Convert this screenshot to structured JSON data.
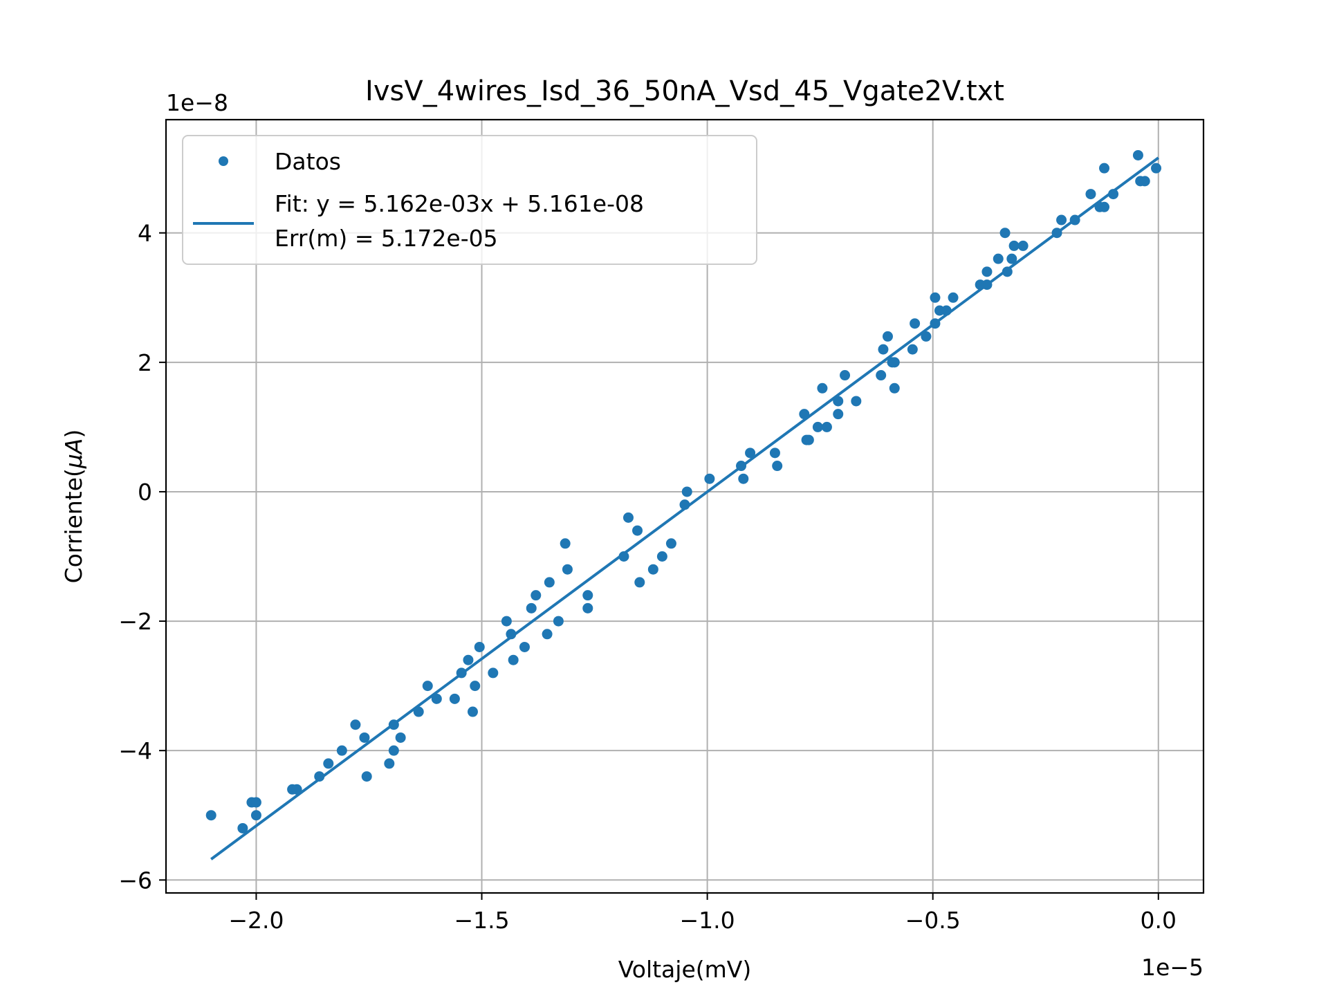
{
  "chart_data": {
    "type": "scatter",
    "title": "IvsV_4wires_Isd_36_50nA_Vsd_45_Vgate2V.txt",
    "xlabel": "Voltaje(mV)",
    "ylabel_prefix": "Corriente(",
    "ylabel_math": "μA",
    "ylabel_suffix": ")",
    "x_offset_text": "1e−5",
    "y_offset_text": "1e−8",
    "x_scale": 1e-05,
    "y_scale": 1e-08,
    "xlim": [
      -2.2e-05,
      1e-06
    ],
    "ylim": [
      -6.2e-08,
      5.75e-08
    ],
    "x_ticks": [
      -2e-05,
      -1.5e-05,
      -1e-05,
      -5e-06,
      0.0
    ],
    "x_tick_labels": [
      "−2.0",
      "−1.5",
      "−1.0",
      "−0.5",
      "0.0"
    ],
    "y_ticks": [
      -6e-08,
      -4e-08,
      -2e-08,
      0,
      2e-08,
      4e-08
    ],
    "y_tick_labels": [
      "−6",
      "−4",
      "−2",
      "0",
      "2",
      "4"
    ],
    "grid": true,
    "legend_position": "upper-left",
    "colors": {
      "series": "#1f77b4",
      "grid": "#b0b0b0",
      "legend_border": "#cccccc"
    },
    "series": [
      {
        "name": "Datos",
        "kind": "scatter",
        "points": [
          [
            -2.1e-05,
            -5e-08
          ],
          [
            -2.03e-05,
            -5.2e-08
          ],
          [
            -2.01e-05,
            -4.8e-08
          ],
          [
            -2e-05,
            -4.8e-08
          ],
          [
            -2e-05,
            -5e-08
          ],
          [
            -1.92e-05,
            -4.6e-08
          ],
          [
            -1.91e-05,
            -4.6e-08
          ],
          [
            -1.86e-05,
            -4.4e-08
          ],
          [
            -1.84e-05,
            -4.2e-08
          ],
          [
            -1.81e-05,
            -4e-08
          ],
          [
            -1.78e-05,
            -3.6e-08
          ],
          [
            -1.76e-05,
            -3.8e-08
          ],
          [
            -1.755e-05,
            -4.4e-08
          ],
          [
            -1.705e-05,
            -4.2e-08
          ],
          [
            -1.695e-05,
            -3.6e-08
          ],
          [
            -1.695e-05,
            -4e-08
          ],
          [
            -1.68e-05,
            -3.8e-08
          ],
          [
            -1.64e-05,
            -3.4e-08
          ],
          [
            -1.62e-05,
            -3e-08
          ],
          [
            -1.6e-05,
            -3.2e-08
          ],
          [
            -1.56e-05,
            -3.2e-08
          ],
          [
            -1.545e-05,
            -2.8e-08
          ],
          [
            -1.53e-05,
            -2.6e-08
          ],
          [
            -1.52e-05,
            -3.4e-08
          ],
          [
            -1.515e-05,
            -3e-08
          ],
          [
            -1.505e-05,
            -2.4e-08
          ],
          [
            -1.475e-05,
            -2.8e-08
          ],
          [
            -1.445e-05,
            -2e-08
          ],
          [
            -1.435e-05,
            -2.2e-08
          ],
          [
            -1.43e-05,
            -2.6e-08
          ],
          [
            -1.405e-05,
            -2.4e-08
          ],
          [
            -1.39e-05,
            -1.8e-08
          ],
          [
            -1.38e-05,
            -1.6e-08
          ],
          [
            -1.355e-05,
            -2.2e-08
          ],
          [
            -1.35e-05,
            -1.4e-08
          ],
          [
            -1.33e-05,
            -2e-08
          ],
          [
            -1.315e-05,
            -8e-09
          ],
          [
            -1.31e-05,
            -1.2e-08
          ],
          [
            -1.265e-05,
            -1.6e-08
          ],
          [
            -1.265e-05,
            -1.8e-08
          ],
          [
            -1.185e-05,
            -1e-08
          ],
          [
            -1.175e-05,
            -4e-09
          ],
          [
            -1.155e-05,
            -6e-09
          ],
          [
            -1.15e-05,
            -1.4e-08
          ],
          [
            -1.12e-05,
            -1.2e-08
          ],
          [
            -1.1e-05,
            -1e-08
          ],
          [
            -1.08e-05,
            -8e-09
          ],
          [
            -1.05e-05,
            -2e-09
          ],
          [
            -1.045e-05,
            0.0
          ],
          [
            -9.95e-06,
            2e-09
          ],
          [
            -9.25e-06,
            4e-09
          ],
          [
            -9.2e-06,
            2e-09
          ],
          [
            -9.05e-06,
            6e-09
          ],
          [
            -8.5e-06,
            6e-09
          ],
          [
            -8.45e-06,
            4e-09
          ],
          [
            -7.85e-06,
            1.2e-08
          ],
          [
            -7.8e-06,
            8e-09
          ],
          [
            -7.75e-06,
            8e-09
          ],
          [
            -7.55e-06,
            1e-08
          ],
          [
            -7.45e-06,
            1.6e-08
          ],
          [
            -7.35e-06,
            1e-08
          ],
          [
            -7.1e-06,
            1.4e-08
          ],
          [
            -7.1e-06,
            1.2e-08
          ],
          [
            -6.95e-06,
            1.8e-08
          ],
          [
            -6.7e-06,
            1.4e-08
          ],
          [
            -6.15e-06,
            1.8e-08
          ],
          [
            -6.1e-06,
            2.2e-08
          ],
          [
            -6e-06,
            2.4e-08
          ],
          [
            -5.9e-06,
            2e-08
          ],
          [
            -5.85e-06,
            2e-08
          ],
          [
            -5.85e-06,
            1.6e-08
          ],
          [
            -5.45e-06,
            2.2e-08
          ],
          [
            -5.4e-06,
            2.6e-08
          ],
          [
            -5.15e-06,
            2.4e-08
          ],
          [
            -4.95e-06,
            3e-08
          ],
          [
            -4.95e-06,
            2.6e-08
          ],
          [
            -4.85e-06,
            2.8e-08
          ],
          [
            -4.7e-06,
            2.8e-08
          ],
          [
            -4.55e-06,
            3e-08
          ],
          [
            -3.95e-06,
            3.2e-08
          ],
          [
            -3.8e-06,
            3.2e-08
          ],
          [
            -3.8e-06,
            3.4e-08
          ],
          [
            -3.55e-06,
            3.6e-08
          ],
          [
            -3.4e-06,
            4e-08
          ],
          [
            -3.35e-06,
            3.4e-08
          ],
          [
            -3.25e-06,
            3.6e-08
          ],
          [
            -3.2e-06,
            3.8e-08
          ],
          [
            -3e-06,
            3.8e-08
          ],
          [
            -2.25e-06,
            4e-08
          ],
          [
            -2.15e-06,
            4.2e-08
          ],
          [
            -1.85e-06,
            4.2e-08
          ],
          [
            -1.5e-06,
            4.6e-08
          ],
          [
            -1.3e-06,
            4.4e-08
          ],
          [
            -1.2e-06,
            5e-08
          ],
          [
            -1.2e-06,
            4.4e-08
          ],
          [
            -1e-06,
            4.6e-08
          ],
          [
            -4.5e-07,
            5.2e-08
          ],
          [
            -4e-07,
            4.8e-08
          ],
          [
            -3e-07,
            4.8e-08
          ],
          [
            -5e-08,
            5e-08
          ]
        ]
      },
      {
        "name": "Fit: y = 5.162e-03x + 5.161e-08",
        "name_line2": "Err(m) = 5.172e-05",
        "kind": "line",
        "slope": 0.005162,
        "intercept": 5.161e-08,
        "x_range": [
          -2.1e-05,
          0.0
        ]
      }
    ]
  }
}
